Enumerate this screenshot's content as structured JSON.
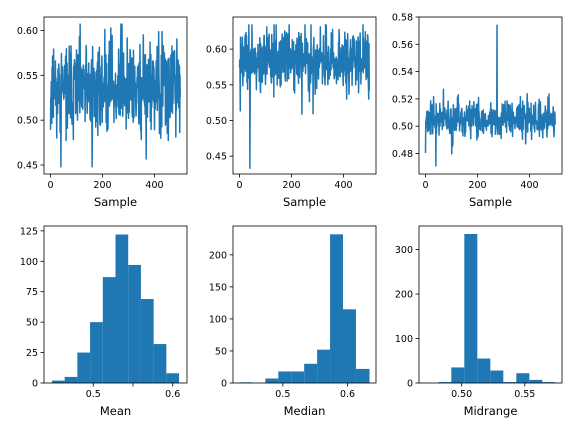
{
  "chart_data": [
    {
      "type": "line",
      "xlabel": "Sample",
      "ylabel": "",
      "xlim": [
        -25,
        525
      ],
      "ylim": [
        0.44,
        0.615
      ],
      "xticks": [
        0,
        200,
        400
      ],
      "xtick_labels": [
        "0",
        "200",
        "400"
      ],
      "yticks": [
        0.45,
        0.5,
        0.55,
        0.6
      ],
      "ytick_labels": [
        "0.45",
        "0.50",
        "0.55",
        "0.60"
      ],
      "series": [
        {
          "color": "#1f77b4",
          "seed": 11,
          "n": 500,
          "center": 0.535,
          "spread": 0.025,
          "min": 0.448,
          "max": 0.607
        }
      ]
    },
    {
      "type": "line",
      "xlabel": "Sample",
      "ylabel": "",
      "xlim": [
        -25,
        525
      ],
      "ylim": [
        0.425,
        0.645
      ],
      "xticks": [
        0,
        200,
        400
      ],
      "xtick_labels": [
        "0",
        "200",
        "400"
      ],
      "yticks": [
        0.45,
        0.5,
        0.55,
        0.6
      ],
      "ytick_labels": [
        "0.45",
        "0.50",
        "0.55",
        "0.60"
      ],
      "series": [
        {
          "color": "#1f77b4",
          "seed": 23,
          "n": 500,
          "center": 0.585,
          "spread": 0.02,
          "min": 0.433,
          "max": 0.634
        }
      ]
    },
    {
      "type": "line",
      "xlabel": "Sample",
      "ylabel": "",
      "xlim": [
        -25,
        525
      ],
      "ylim": [
        0.465,
        0.58
      ],
      "xticks": [
        0,
        200,
        400
      ],
      "xtick_labels": [
        "0",
        "200",
        "400"
      ],
      "yticks": [
        0.48,
        0.5,
        0.52,
        0.54,
        0.56,
        0.58
      ],
      "ytick_labels": [
        "0.48",
        "0.50",
        "0.52",
        "0.54",
        "0.56",
        "0.58"
      ],
      "series": [
        {
          "color": "#1f77b4",
          "seed": 37,
          "n": 500,
          "center": 0.505,
          "spread": 0.006,
          "min": 0.471,
          "max": 0.574
        }
      ]
    },
    {
      "type": "bar",
      "xlabel": "Mean",
      "ylabel": "",
      "color": "#1f77b4",
      "xlim": [
        0.438,
        0.618
      ],
      "ylim": [
        0,
        129
      ],
      "xticks": [
        0.5,
        0.55,
        0.6
      ],
      "xtick_labels": [
        "0.5",
        "",
        "0.6"
      ],
      "yticks": [
        0,
        25,
        50,
        75,
        100,
        125
      ],
      "ytick_labels": [
        "0",
        "25",
        "50",
        "75",
        "100",
        "125"
      ],
      "bin_edges": [
        0.448,
        0.464,
        0.48,
        0.496,
        0.512,
        0.528,
        0.544,
        0.56,
        0.576,
        0.592,
        0.608
      ],
      "values": [
        2,
        5,
        25,
        50,
        87,
        122,
        97,
        69,
        32,
        8
      ]
    },
    {
      "type": "bar",
      "xlabel": "Median",
      "ylabel": "",
      "color": "#1f77b4",
      "xlim": [
        0.423,
        0.644
      ],
      "ylim": [
        0,
        245
      ],
      "xticks": [
        0.5,
        0.6
      ],
      "xtick_labels": [
        "0.5",
        "0.6"
      ],
      "yticks": [
        0,
        50,
        100,
        150,
        200
      ],
      "ytick_labels": [
        "0",
        "50",
        "100",
        "150",
        "200"
      ],
      "bin_edges": [
        0.433,
        0.453,
        0.473,
        0.493,
        0.513,
        0.533,
        0.553,
        0.573,
        0.593,
        0.613,
        0.634
      ],
      "values": [
        1,
        0,
        7,
        18,
        18,
        30,
        52,
        232,
        115,
        22
      ]
    },
    {
      "type": "bar",
      "xlabel": "Midrange",
      "ylabel": "",
      "color": "#1f77b4",
      "xlim": [
        0.4662,
        0.5795
      ],
      "ylim": [
        0,
        353
      ],
      "xticks": [
        0.5,
        0.55
      ],
      "xtick_labels": [
        "0.50",
        "0.55"
      ],
      "yticks": [
        0,
        100,
        200,
        300
      ],
      "ytick_labels": [
        "0",
        "100",
        "200",
        "300"
      ],
      "bin_edges": [
        0.4712,
        0.4815,
        0.4918,
        0.5021,
        0.5124,
        0.5227,
        0.533,
        0.5433,
        0.5536,
        0.5639,
        0.5742
      ],
      "values": [
        0,
        2,
        35,
        335,
        55,
        28,
        2,
        22,
        7,
        2
      ]
    }
  ]
}
